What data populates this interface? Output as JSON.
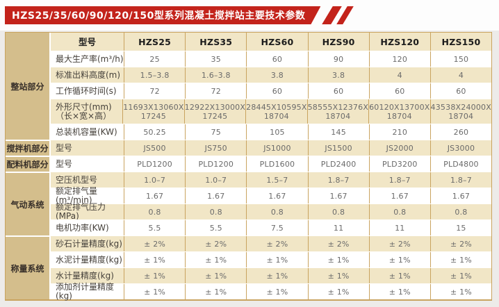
{
  "page": {
    "title": "HZS25/35/60/90/120/150型系列混凝土搅拌站主要技术参数"
  },
  "colors": {
    "brand_red": "#c3231b",
    "group_column_tan": "#d4be8c",
    "row_cream": "#f1e6c6",
    "row_white": "#ffffff",
    "cell_border_tan": "#c9a35f",
    "page_background": "#edebe9"
  },
  "table": {
    "corner_header": "型号",
    "model_headers": [
      "HZS25",
      "HZS35",
      "HZS60",
      "HZS90",
      "HZS120",
      "HZS150"
    ],
    "groups": [
      {
        "label": "整站部分",
        "row_count": 5,
        "includes_header_row": true
      },
      {
        "label": "搅拌机部分",
        "row_count": 1
      },
      {
        "label": "配料机部分",
        "row_count": 1
      },
      {
        "label": "气动系统",
        "row_count": 4
      },
      {
        "label": "称量系统",
        "row_count": 4
      }
    ],
    "rows": [
      {
        "label": "最大生产率(m³/h)",
        "values": [
          "25",
          "35",
          "60",
          "90",
          "120",
          "150"
        ]
      },
      {
        "label": "标准出料高度(m)",
        "values": [
          "1.5–3.8",
          "1.6–3.8",
          "3.8",
          "3.8",
          "4",
          "4"
        ]
      },
      {
        "label": "工作循环时间(s)",
        "values": [
          "72",
          "72",
          "60",
          "60",
          "60",
          "60"
        ]
      },
      {
        "label": "外形尺寸(mm)\n（长×宽×高）",
        "values": [
          "11693X13060X\n17245",
          "12922X13000X\n17245",
          "28445X10595X\n18704",
          "58555X12376X\n18704",
          "60120X13700X\n18704",
          "43538X24000X\n18704"
        ]
      },
      {
        "label": "总装机容量(KW)",
        "values": [
          "50.25",
          "75",
          "105",
          "145",
          "210",
          "260"
        ]
      },
      {
        "label": "型号",
        "values": [
          "JS500",
          "JS750",
          "JS1000",
          "JS1500",
          "JS2000",
          "JS3000"
        ]
      },
      {
        "label": "型号",
        "values": [
          "PLD1200",
          "PLD1200",
          "PLD1600",
          "PLD2400",
          "PLD3200",
          "PLD4800"
        ]
      },
      {
        "label": "空压机型号",
        "values": [
          "1.0–7",
          "1.0–7",
          "1.5–7",
          "1.8–7",
          "1.8–7",
          "1.8–7"
        ]
      },
      {
        "label": "额定排气量(m³/min)",
        "values": [
          "1.67",
          "1.67",
          "1.67",
          "1.67",
          "1.67",
          "1.67"
        ]
      },
      {
        "label": "额定排气压力(MPa)",
        "values": [
          "0.8",
          "0.8",
          "0.8",
          "0.8",
          "0.8",
          "0.8"
        ]
      },
      {
        "label": "电机功率(KW)",
        "values": [
          "5.5",
          "5.5",
          "7.5",
          "11",
          "11",
          "15"
        ]
      },
      {
        "label": "砂石计量精度(kg)",
        "values": [
          "± 2%",
          "± 2%",
          "± 2%",
          "± 2%",
          "± 2%",
          "± 2%"
        ]
      },
      {
        "label": "水泥计量精度(kg)",
        "values": [
          "± 1%",
          "± 1%",
          "± 1%",
          "± 1%",
          "± 1%",
          "± 1%"
        ]
      },
      {
        "label": "水计量精度(kg)",
        "values": [
          "± 1%",
          "± 1%",
          "± 1%",
          "± 1%",
          "± 1%",
          "± 1%"
        ]
      },
      {
        "label": "添加剂计量精度(kg)",
        "values": [
          "± 1%",
          "± 1%",
          "± 1%",
          "± 1%",
          "± 1%",
          "± 1%"
        ]
      }
    ]
  }
}
